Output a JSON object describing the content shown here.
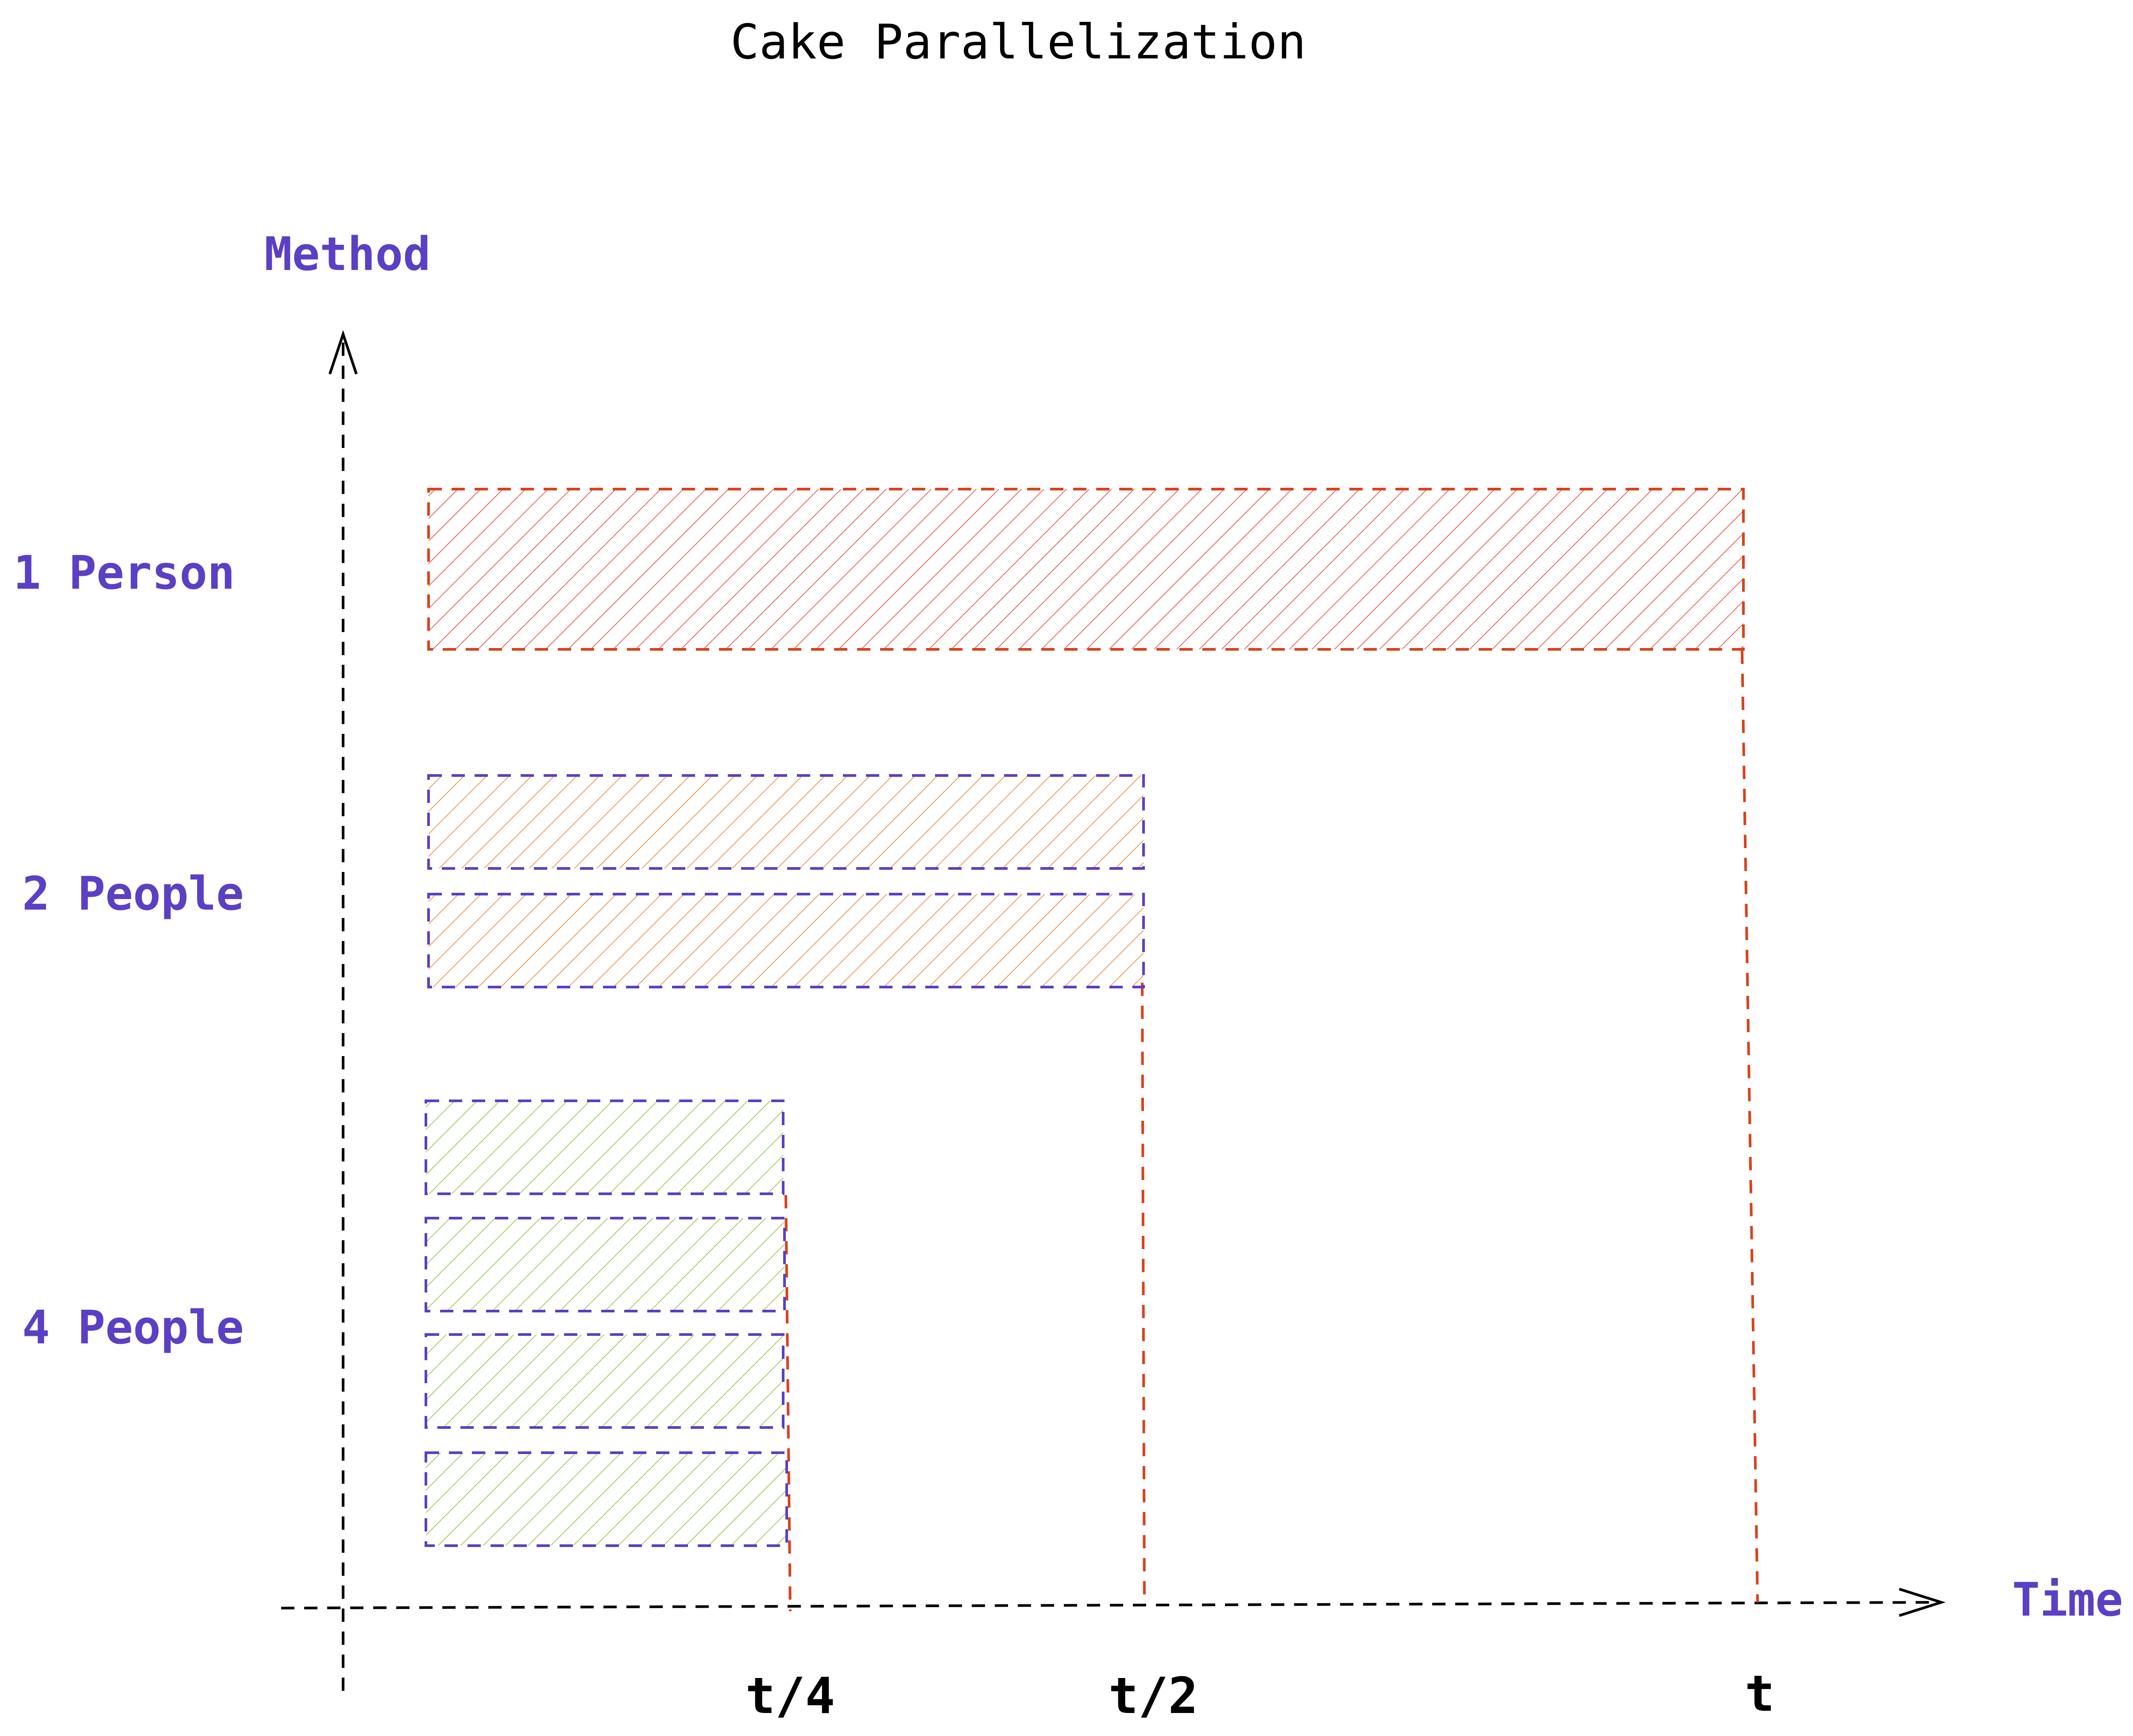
{
  "title": "Cake Parallelization",
  "axes": {
    "y_label": "Method",
    "x_label": "Time"
  },
  "methods": [
    {
      "label": "1 Person",
      "workers": 1,
      "duration": "t"
    },
    {
      "label": "2 People",
      "workers": 2,
      "duration": "t/2"
    },
    {
      "label": "4 People",
      "workers": 4,
      "duration": "t/4"
    }
  ],
  "time_ticks": [
    "t/4",
    "t/2",
    "t"
  ],
  "colors": {
    "title": "#000000",
    "label": "#5b3fc4",
    "axis": "#000000",
    "guide": "#d9421b",
    "one_person_hatch": "#e8453c",
    "one_person_border": "#d9421b",
    "two_people_hatch": "#f0822e",
    "two_people_border": "#5b3fc4",
    "four_people_hatch": "#8cc43c",
    "four_people_border": "#5b3fc4"
  }
}
